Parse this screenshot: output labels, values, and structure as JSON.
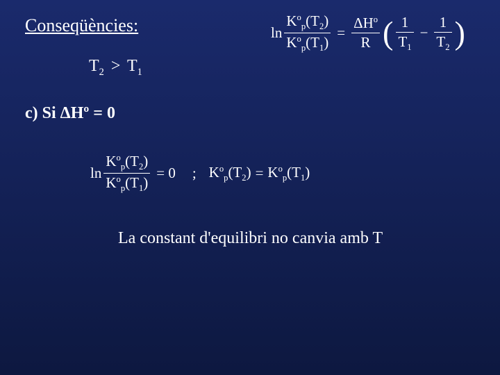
{
  "title": "Conseqüències:",
  "condition": {
    "left": "T",
    "leftSub": "2",
    "op": ">",
    "right": "T",
    "rightSub": "1"
  },
  "caseC": {
    "prefix": "c) Si ",
    "delta": "ΔHº = 0"
  },
  "vantHoff": {
    "ln": "ln",
    "Kp": "K",
    "KpSub": "p",
    "KpSup": "o",
    "T2": "(T",
    "T2sub": "2",
    "T2close": ")",
    "T1": "(T",
    "T1sub": "1",
    "T1close": ")",
    "eq": "=",
    "dH": "ΔH",
    "dHsup": "o",
    "R": "R",
    "lparen": "(",
    "rparen": ")",
    "one": "1",
    "minus": "−",
    "Ta": "T",
    "TaSub": "1",
    "Tb": "T",
    "TbSub": "2"
  },
  "middle": {
    "ln": "ln",
    "Kp": "K",
    "KpSub": "p",
    "KpSup": "o",
    "T2": "(T",
    "T2sub": "2",
    "T2close": ")",
    "T1": "(T",
    "T1sub": "1",
    "T1close": ")",
    "eqZero": "= 0",
    "semi": ";",
    "eq": "="
  },
  "conclusion": "La constant d'equilibri no canvia amb T"
}
